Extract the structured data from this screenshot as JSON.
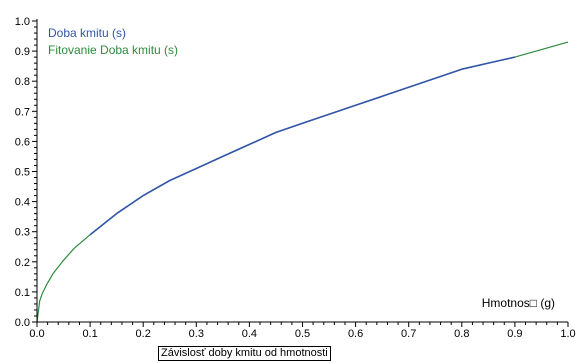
{
  "chart_data": {
    "type": "line",
    "title": "",
    "xlabel": "Hmotnos□ (g)",
    "ylabel": "",
    "caption": "Závislosť doby kmitu od hmotnosti",
    "xlim": [
      0.0,
      1.0
    ],
    "ylim": [
      0.0,
      1.0
    ],
    "x_ticks": [
      "0.0",
      "0.1",
      "0.2",
      "0.3",
      "0.4",
      "0.5",
      "0.6",
      "0.7",
      "0.8",
      "0.9",
      "1.0"
    ],
    "y_ticks": [
      "0.0",
      "0.1",
      "0.2",
      "0.3",
      "0.4",
      "0.5",
      "0.6",
      "0.7",
      "0.8",
      "0.9",
      "1.0"
    ],
    "grid": false,
    "legend_position": "top-left",
    "series": [
      {
        "name": "Doba kmitu (s)",
        "color": "#3355aa",
        "x": [
          0.1,
          0.15,
          0.2,
          0.25,
          0.3,
          0.35,
          0.4,
          0.45,
          0.5,
          0.55,
          0.6,
          0.65,
          0.7,
          0.75,
          0.8,
          0.85,
          0.9
        ],
        "y": [
          0.29,
          0.36,
          0.42,
          0.47,
          0.51,
          0.55,
          0.59,
          0.63,
          0.66,
          0.69,
          0.72,
          0.75,
          0.78,
          0.81,
          0.84,
          0.86,
          0.88
        ]
      },
      {
        "name": "Fitovanie  Doba kmitu (s)",
        "color": "#2e8b3e",
        "x": [
          0.0,
          0.005,
          0.01,
          0.02,
          0.03,
          0.05,
          0.07,
          0.1,
          0.15,
          0.2,
          0.25,
          0.3,
          0.35,
          0.4,
          0.45,
          0.5,
          0.55,
          0.6,
          0.65,
          0.7,
          0.75,
          0.8,
          0.85,
          0.9,
          0.95,
          1.0
        ],
        "y": [
          0.0,
          0.07,
          0.095,
          0.13,
          0.16,
          0.205,
          0.245,
          0.29,
          0.36,
          0.42,
          0.47,
          0.51,
          0.55,
          0.59,
          0.63,
          0.66,
          0.69,
          0.72,
          0.75,
          0.78,
          0.81,
          0.84,
          0.86,
          0.88,
          0.905,
          0.93
        ]
      }
    ]
  }
}
